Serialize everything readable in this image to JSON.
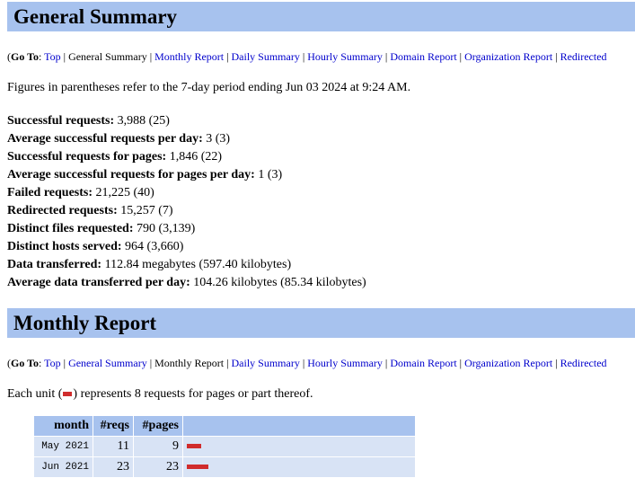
{
  "general": {
    "title": "General Summary",
    "nav": {
      "goto_label": "Go To",
      "top": "Top",
      "general": "General Summary",
      "monthly": "Monthly Report",
      "daily": "Daily Summary",
      "hourly": "Hourly Summary",
      "domain": "Domain Report",
      "organization": "Organization Report",
      "redirected": "Redirected"
    },
    "period_note": "Figures in parentheses refer to the 7-day period ending Jun 03 2024 at 9:24 AM.",
    "stats": [
      {
        "label": "Successful requests:",
        "value": "3,988 (25)"
      },
      {
        "label": "Average successful requests per day:",
        "value": "3 (3)"
      },
      {
        "label": "Successful requests for pages:",
        "value": "1,846 (22)"
      },
      {
        "label": "Average successful requests for pages per day:",
        "value": "1 (3)"
      },
      {
        "label": "Failed requests:",
        "value": "21,225 (40)"
      },
      {
        "label": "Redirected requests:",
        "value": "15,257 (7)"
      },
      {
        "label": "Distinct files requested:",
        "value": "790 (3,139)"
      },
      {
        "label": "Distinct hosts served:",
        "value": "964 (3,660)"
      },
      {
        "label": "Data transferred:",
        "value": "112.84 megabytes (597.40 kilobytes)"
      },
      {
        "label": "Average data transferred per day:",
        "value": "104.26 kilobytes (85.34 kilobytes)"
      }
    ]
  },
  "monthly": {
    "title": "Monthly Report",
    "unit_note_before": "Each unit (",
    "unit_note_after": ") represents 8 requests for pages or part thereof.",
    "columns": [
      "month",
      "#reqs",
      "#pages"
    ],
    "rows": [
      {
        "month": "May 2021",
        "reqs": "11",
        "pages": "9",
        "units": 2
      },
      {
        "month": "Jun 2021",
        "reqs": "23",
        "pages": "23",
        "units": 3
      }
    ],
    "bar_color": "#d02c2c"
  },
  "colors": {
    "band": "#a7c2ee",
    "row": "#d8e3f5",
    "link": "#0000cc"
  }
}
